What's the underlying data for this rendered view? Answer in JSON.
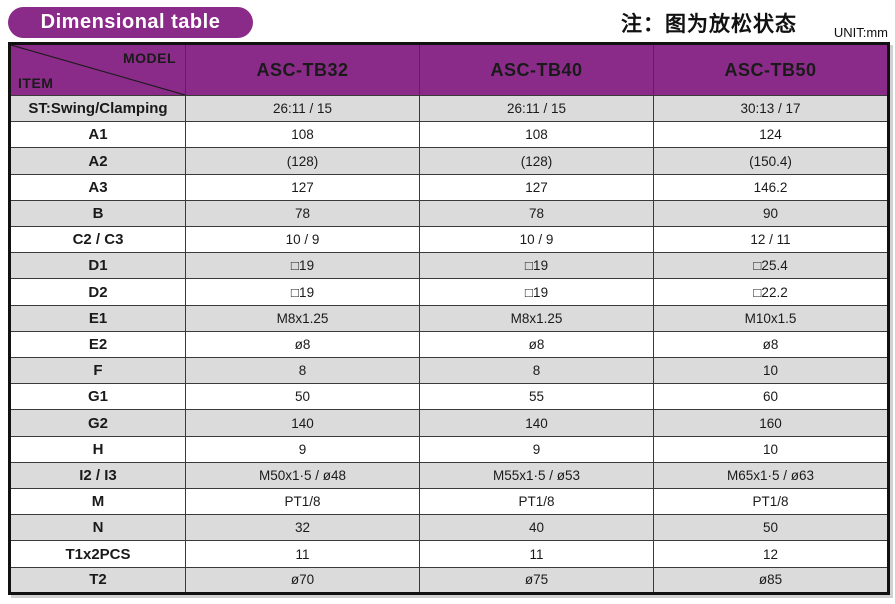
{
  "page": {
    "title_badge": "Dimensional table",
    "note": "注：图为放松状态",
    "unit": "UNIT:mm"
  },
  "colors": {
    "accent_purple": "#8B2B89",
    "row_grey": "#DBDBDB",
    "border_dark": "#111111"
  },
  "table": {
    "corner": {
      "top_right": "MODEL",
      "bottom_left": "ITEM"
    },
    "columns": [
      "ASC-TB32",
      "ASC-TB40",
      "ASC-TB50"
    ],
    "rows": [
      {
        "item": "ST:Swing/Clamping",
        "values": [
          "26:11 / 15",
          "26:11 / 15",
          "30:13 / 17"
        ]
      },
      {
        "item": "A1",
        "values": [
          "108",
          "108",
          "124"
        ]
      },
      {
        "item": "A2",
        "values": [
          "(128)",
          "(128)",
          "(150.4)"
        ]
      },
      {
        "item": "A3",
        "values": [
          "127",
          "127",
          "146.2"
        ]
      },
      {
        "item": "B",
        "values": [
          "78",
          "78",
          "90"
        ]
      },
      {
        "item": "C2 / C3",
        "values": [
          "10 / 9",
          "10 / 9",
          "12 / 11"
        ]
      },
      {
        "item": "D1",
        "values": [
          "□19",
          "□19",
          "□25.4"
        ]
      },
      {
        "item": "D2",
        "values": [
          "□19",
          "□19",
          "□22.2"
        ]
      },
      {
        "item": "E1",
        "values": [
          "M8x1.25",
          "M8x1.25",
          "M10x1.5"
        ]
      },
      {
        "item": "E2",
        "values": [
          "ø8",
          "ø8",
          "ø8"
        ]
      },
      {
        "item": "F",
        "values": [
          "8",
          "8",
          "10"
        ]
      },
      {
        "item": "G1",
        "values": [
          "50",
          "55",
          "60"
        ]
      },
      {
        "item": "G2",
        "values": [
          "140",
          "140",
          "160"
        ]
      },
      {
        "item": "H",
        "values": [
          "9",
          "9",
          "10"
        ]
      },
      {
        "item": "I2 / I3",
        "values": [
          "M50x1·5 / ø48",
          "M55x1·5 / ø53",
          "M65x1·5 / ø63"
        ]
      },
      {
        "item": "M",
        "values": [
          "PT1/8",
          "PT1/8",
          "PT1/8"
        ]
      },
      {
        "item": "N",
        "values": [
          "32",
          "40",
          "50"
        ]
      },
      {
        "item": "T1x2PCS",
        "values": [
          "11",
          "11",
          "12"
        ]
      },
      {
        "item": "T2",
        "values": [
          "ø70",
          "ø75",
          "ø85"
        ]
      }
    ]
  }
}
